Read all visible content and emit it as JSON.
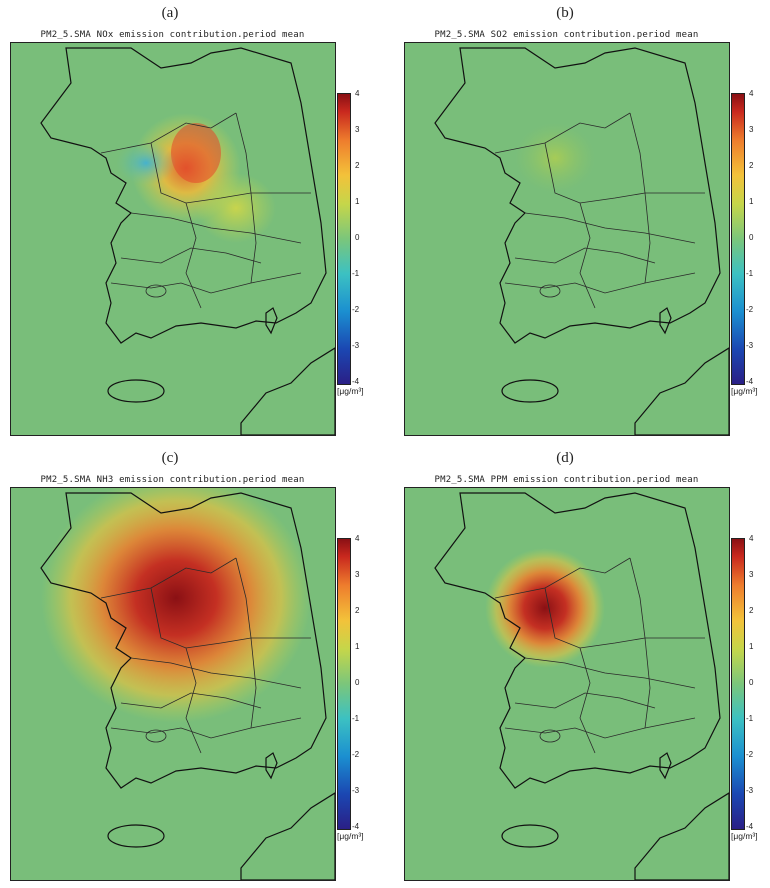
{
  "panels": [
    {
      "letter": "(a)",
      "title": "PM2_5.SMA NOx emission contribution.period mean"
    },
    {
      "letter": "(b)",
      "title": "PM2_5.SMA SO2 emission contribution.period mean"
    },
    {
      "letter": "(c)",
      "title": "PM2_5.SMA NH3 emission contribution.period mean"
    },
    {
      "letter": "(d)",
      "title": "PM2_5.SMA PPM emission contribution.period mean"
    }
  ],
  "colorbar": {
    "ticks": [
      "4",
      "3",
      "2",
      "1",
      "0",
      "-1",
      "-2",
      "-3",
      "-4"
    ],
    "unit": "[μg/m³]",
    "colors": [
      "#2a1f86",
      "#1b47b2",
      "#1b8fd0",
      "#3cc1c2",
      "#7bc67b",
      "#c5d64a",
      "#f3c23a",
      "#ee7d2d",
      "#c8281e",
      "#8a1014"
    ]
  },
  "background_color": "#79be7a"
}
